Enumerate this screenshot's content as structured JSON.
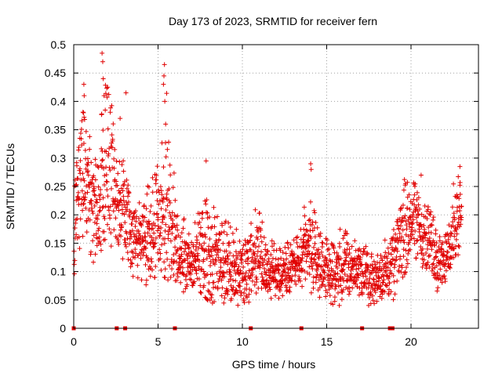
{
  "chart_data": {
    "type": "scatter",
    "title": "Day 173 of 2023, SRMTID for receiver fern",
    "xlabel": "GPS time / hours",
    "ylabel": "SRMTID / TECUs",
    "xlim": [
      0,
      24
    ],
    "ylim": [
      0,
      0.5
    ],
    "xticks": [
      0,
      5,
      10,
      15,
      20
    ],
    "xtick_labels": [
      "0",
      "5",
      "10",
      "15",
      "20"
    ],
    "yticks": [
      0,
      0.05,
      0.1,
      0.15,
      0.2,
      0.25,
      0.3,
      0.35,
      0.4,
      0.45,
      0.5
    ],
    "ytick_labels": [
      "0",
      "0.05",
      "0.1",
      "0.15",
      "0.2",
      "0.25",
      "0.3",
      "0.35",
      "0.4",
      "0.45",
      "0.5"
    ],
    "grid": true,
    "marker": "plus",
    "color": "#e00000",
    "zero_markers_x": [
      0.0,
      2.55,
      3.05,
      6.0,
      10.5,
      13.5,
      17.1,
      18.75,
      18.9
    ],
    "envelope": {
      "x": [
        0,
        0.5,
        1.0,
        1.5,
        2.0,
        2.5,
        3.0,
        3.5,
        4.0,
        4.5,
        5.0,
        5.5,
        6.0,
        6.5,
        7.0,
        7.5,
        8.0,
        8.5,
        9.0,
        9.5,
        10.0,
        10.5,
        11.0,
        11.5,
        12.0,
        12.5,
        13.0,
        13.5,
        14.0,
        14.5,
        15.0,
        15.5,
        16.0,
        16.5,
        17.0,
        17.5,
        18.0,
        18.5,
        19.0,
        19.5,
        20.0,
        20.5,
        21.0,
        21.5,
        22.0,
        22.5,
        23.0
      ],
      "low": [
        0.1,
        0.12,
        0.1,
        0.14,
        0.15,
        0.14,
        0.13,
        0.11,
        0.09,
        0.1,
        0.12,
        0.11,
        0.09,
        0.06,
        0.07,
        0.08,
        0.06,
        0.05,
        0.05,
        0.05,
        0.05,
        0.06,
        0.07,
        0.06,
        0.06,
        0.06,
        0.07,
        0.08,
        0.08,
        0.07,
        0.06,
        0.05,
        0.05,
        0.06,
        0.06,
        0.05,
        0.04,
        0.05,
        0.06,
        0.09,
        0.12,
        0.12,
        0.1,
        0.08,
        0.08,
        0.11,
        0.13
      ],
      "mid": [
        0.15,
        0.26,
        0.24,
        0.23,
        0.29,
        0.24,
        0.19,
        0.16,
        0.14,
        0.15,
        0.18,
        0.2,
        0.16,
        0.12,
        0.11,
        0.12,
        0.11,
        0.1,
        0.1,
        0.1,
        0.09,
        0.12,
        0.13,
        0.1,
        0.09,
        0.1,
        0.11,
        0.11,
        0.13,
        0.11,
        0.1,
        0.09,
        0.1,
        0.11,
        0.1,
        0.09,
        0.09,
        0.1,
        0.11,
        0.17,
        0.2,
        0.18,
        0.15,
        0.13,
        0.12,
        0.17,
        0.22
      ],
      "high": [
        0.25,
        0.4,
        0.33,
        0.35,
        0.46,
        0.34,
        0.3,
        0.25,
        0.22,
        0.26,
        0.3,
        0.44,
        0.26,
        0.2,
        0.18,
        0.22,
        0.26,
        0.2,
        0.19,
        0.18,
        0.17,
        0.22,
        0.21,
        0.17,
        0.15,
        0.15,
        0.16,
        0.18,
        0.28,
        0.18,
        0.16,
        0.15,
        0.2,
        0.16,
        0.15,
        0.15,
        0.13,
        0.16,
        0.18,
        0.26,
        0.27,
        0.24,
        0.24,
        0.19,
        0.16,
        0.26,
        0.28
      ]
    },
    "spikes": [
      {
        "x": 1.68,
        "y": 0.485
      },
      {
        "x": 1.72,
        "y": 0.47
      },
      {
        "x": 1.75,
        "y": 0.44
      },
      {
        "x": 1.8,
        "y": 0.41
      },
      {
        "x": 0.6,
        "y": 0.43
      },
      {
        "x": 0.62,
        "y": 0.41
      },
      {
        "x": 0.58,
        "y": 0.38
      },
      {
        "x": 3.1,
        "y": 0.415
      },
      {
        "x": 2.75,
        "y": 0.37
      },
      {
        "x": 5.38,
        "y": 0.465
      },
      {
        "x": 5.35,
        "y": 0.445
      },
      {
        "x": 5.32,
        "y": 0.43
      },
      {
        "x": 5.4,
        "y": 0.4
      },
      {
        "x": 5.45,
        "y": 0.36
      },
      {
        "x": 14.05,
        "y": 0.29
      },
      {
        "x": 14.08,
        "y": 0.28
      },
      {
        "x": 7.85,
        "y": 0.295
      },
      {
        "x": 20.6,
        "y": 0.27
      },
      {
        "x": 22.9,
        "y": 0.285
      }
    ]
  }
}
